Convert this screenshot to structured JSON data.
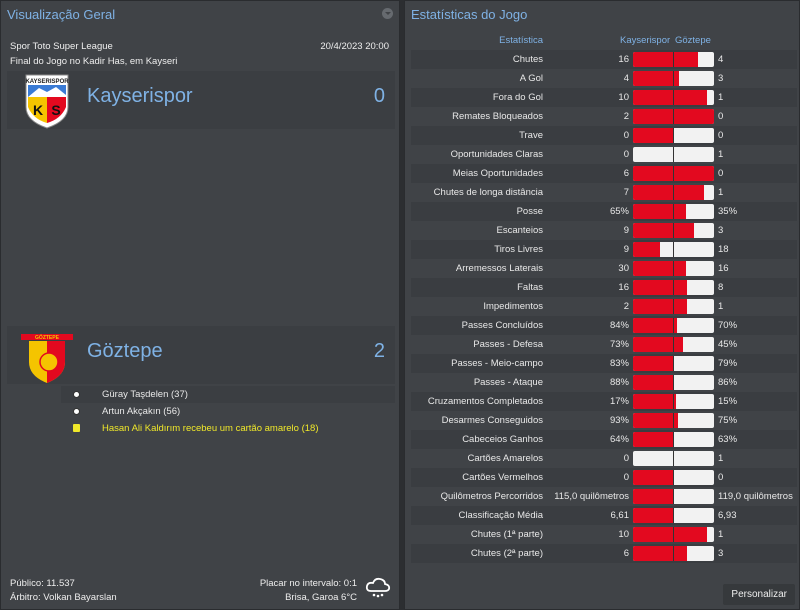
{
  "overview": {
    "title": "Visualização Geral",
    "competition": "Spor Toto Super League",
    "datetime": "20/4/2023 20:00",
    "venue": "Final do Jogo no Kadir Has, em Kayseri",
    "home": {
      "name": "Kayserispor",
      "score": "0",
      "badge_text": "KAYSERISPOR",
      "badge_letters": "KS",
      "badge_colors": [
        "#f5c400",
        "#e3091f"
      ]
    },
    "away": {
      "name": "Göztepe",
      "score": "2",
      "badge_text": "GÖZTEPE",
      "badge_colors": [
        "#f5c400",
        "#e3091f"
      ]
    },
    "events": [
      {
        "type": "goal",
        "icon": "football-icon",
        "text": "Güray Taşdelen (37)"
      },
      {
        "type": "goal",
        "icon": "football-icon",
        "text": "Artun Akçakın (56)"
      },
      {
        "type": "yellow-card",
        "icon": "yellow-card-icon",
        "text": "Hasan Ali Kaldırım recebeu um cartão amarelo (18)",
        "color": "#f0e82a"
      }
    ],
    "attendance": "Público: 11.537",
    "referee": "Árbitro: Volkan Bayarslan",
    "halftime": "Placar no intervalo: 0:1",
    "weather": "Brisa, Garoa 6°C",
    "weather_icon": "rain-cloud-icon"
  },
  "stats": {
    "title": "Estatísticas do Jogo",
    "col_stat": "Estatística",
    "col_home": "Kayserispor",
    "col_away": "Göztepe",
    "home_color": "#e3091f",
    "away_color": "#f2f2f2",
    "rows": [
      {
        "label": "Chutes",
        "home": "16",
        "away": "4"
      },
      {
        "label": "A Gol",
        "home": "4",
        "away": "3"
      },
      {
        "label": "Fora do Gol",
        "home": "10",
        "away": "1"
      },
      {
        "label": "Remates Bloqueados",
        "home": "2",
        "away": "0"
      },
      {
        "label": "Trave",
        "home": "0",
        "away": "0"
      },
      {
        "label": "Oportunidades Claras",
        "home": "0",
        "away": "1"
      },
      {
        "label": "Meias Oportunidades",
        "home": "6",
        "away": "0"
      },
      {
        "label": "Chutes de longa distância",
        "home": "7",
        "away": "1"
      },
      {
        "label": "Posse",
        "home": "65%",
        "away": "35%"
      },
      {
        "label": "Escanteios",
        "home": "9",
        "away": "3"
      },
      {
        "label": "Tiros Livres",
        "home": "9",
        "away": "18"
      },
      {
        "label": "Arremessos Laterais",
        "home": "30",
        "away": "16"
      },
      {
        "label": "Faltas",
        "home": "16",
        "away": "8"
      },
      {
        "label": "Impedimentos",
        "home": "2",
        "away": "1"
      },
      {
        "label": "Passes Concluídos",
        "home": "84%",
        "away": "70%"
      },
      {
        "label": "Passes - Defesa",
        "home": "73%",
        "away": "45%"
      },
      {
        "label": "Passes - Meio-campo",
        "home": "83%",
        "away": "79%"
      },
      {
        "label": "Passes - Ataque",
        "home": "88%",
        "away": "86%"
      },
      {
        "label": "Cruzamentos Completados",
        "home": "17%",
        "away": "15%"
      },
      {
        "label": "Desarmes Conseguidos",
        "home": "93%",
        "away": "75%"
      },
      {
        "label": "Cabeceios Ganhos",
        "home": "64%",
        "away": "63%"
      },
      {
        "label": "Cartões Amarelos",
        "home": "0",
        "away": "1"
      },
      {
        "label": "Cartões Vermelhos",
        "home": "0",
        "away": "0"
      },
      {
        "label": "Quilômetros Percorridos",
        "home": "115,0 quilômetros",
        "away": "119,0 quilômetros"
      },
      {
        "label": "Classificação Média",
        "home": "6,61",
        "away": "6,93"
      },
      {
        "label": "Chutes (1ª parte)",
        "home": "10",
        "away": "1"
      },
      {
        "label": "Chutes (2ª parte)",
        "home": "6",
        "away": "3"
      }
    ],
    "customize_label": "Personalizar"
  }
}
